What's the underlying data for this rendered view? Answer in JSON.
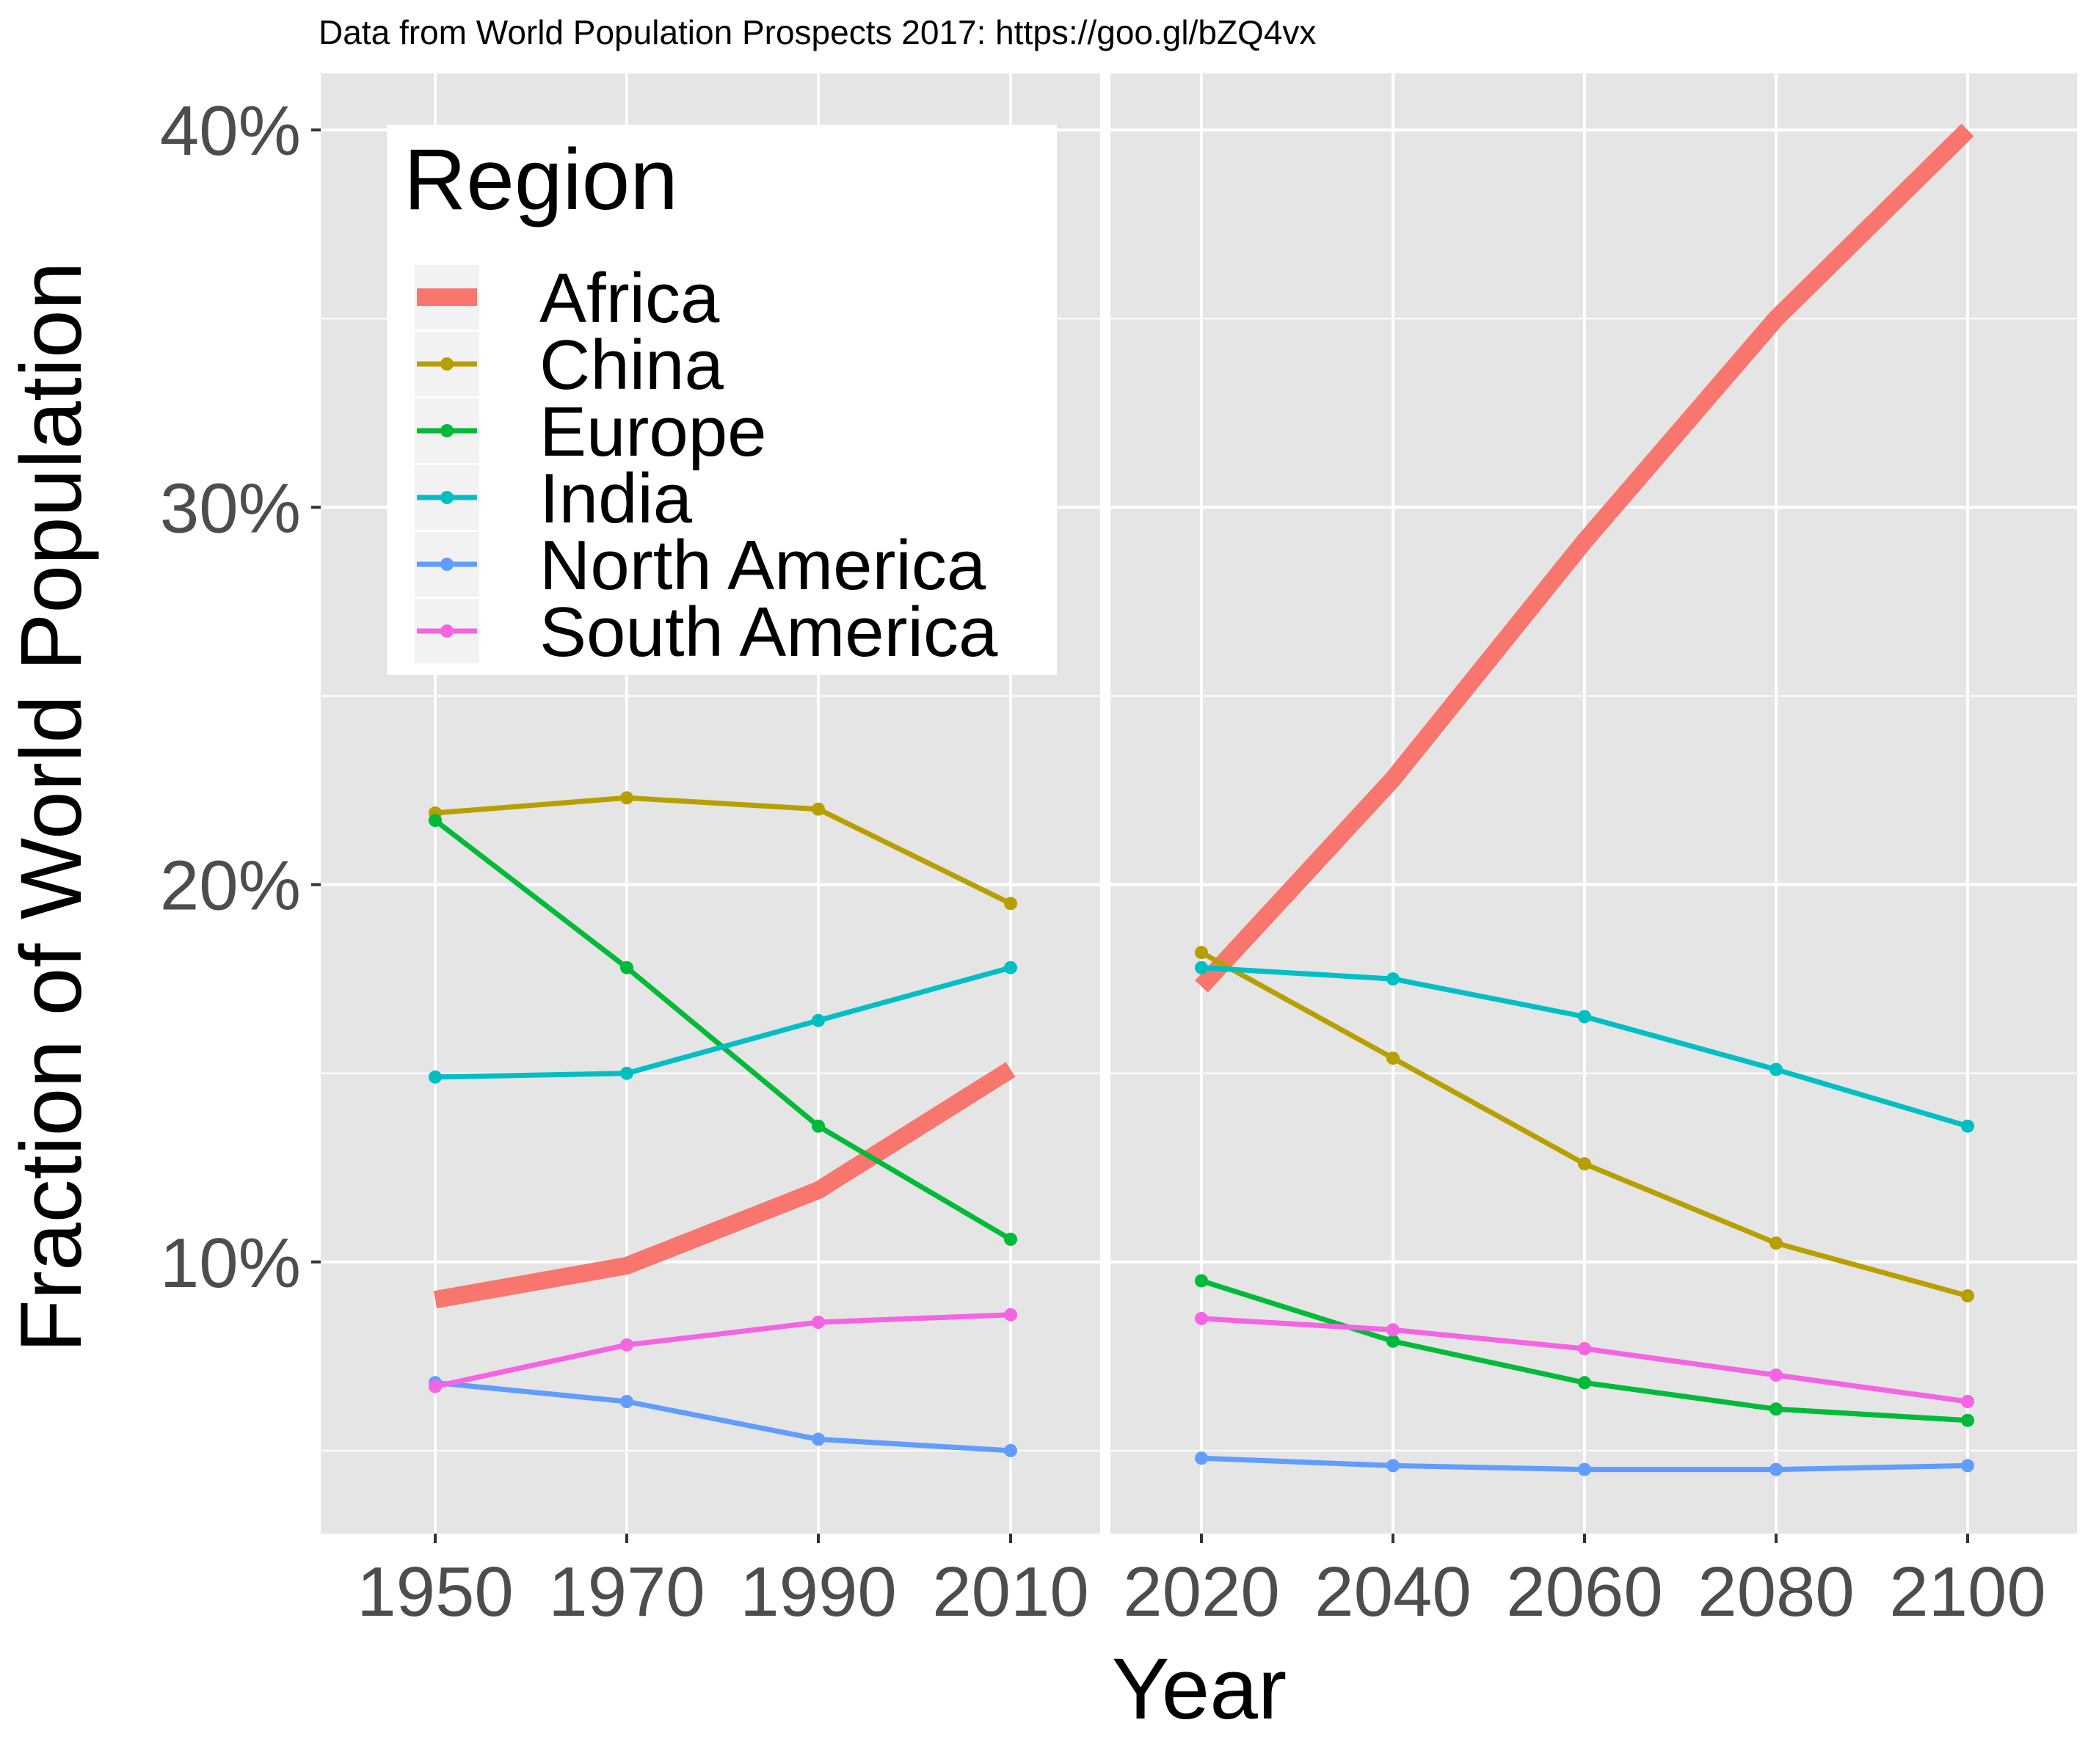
{
  "chart_data": {
    "type": "line",
    "title": "",
    "caption": "Data from World Population Prospects 2017: https://goo.gl/bZQ4vx",
    "xlabel": "Year",
    "ylabel": "Fraction of World Population",
    "categories": [
      "1950",
      "1970",
      "1990",
      "2010",
      "2020",
      "2040",
      "2060",
      "2080",
      "2100"
    ],
    "y_ticks": [
      "10%",
      "20%",
      "30%",
      "40%"
    ],
    "y_tick_values": [
      10,
      20,
      30,
      40
    ],
    "ylim": [
      2.8,
      41.5
    ],
    "y_unit": "%",
    "grid": true,
    "panel_break_after": "2010",
    "legend": {
      "title": "Region",
      "position": "top-left"
    },
    "series": [
      {
        "name": "Africa",
        "color": "#F8766D",
        "emphasis": true,
        "values": [
          9.0,
          9.9,
          11.9,
          15.1,
          17.3,
          22.8,
          29.1,
          35.0,
          40.0
        ]
      },
      {
        "name": "China",
        "color": "#B79F00",
        "values": [
          21.9,
          22.3,
          22.0,
          19.5,
          18.2,
          15.4,
          12.6,
          10.5,
          9.1
        ]
      },
      {
        "name": "Europe",
        "color": "#00BA38",
        "values": [
          21.7,
          17.8,
          13.6,
          10.6,
          9.5,
          7.9,
          6.8,
          6.1,
          5.8
        ]
      },
      {
        "name": "India",
        "color": "#00BFC4",
        "values": [
          14.9,
          15.0,
          16.4,
          17.8,
          17.8,
          17.5,
          16.5,
          15.1,
          13.6
        ]
      },
      {
        "name": "North America",
        "color": "#619CFF",
        "values": [
          6.8,
          6.3,
          5.3,
          5.0,
          4.8,
          4.6,
          4.5,
          4.5,
          4.6
        ]
      },
      {
        "name": "South America",
        "color": "#F564E3",
        "values": [
          6.7,
          7.8,
          8.4,
          8.6,
          8.5,
          8.2,
          7.7,
          7.0,
          6.3
        ]
      }
    ]
  }
}
